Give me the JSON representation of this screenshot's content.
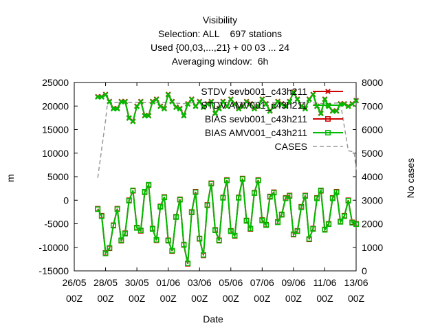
{
  "chart_data": {
    "type": "line",
    "title": "Visibility",
    "subtitle_lines": [
      "Selection: ALL    697 stations",
      "Used {00,03,...,21} + 00 03 ... 24",
      "Averaging window:  6h"
    ],
    "xlabel": "Date",
    "ylabel": "m",
    "y2label": "No cases",
    "ylim": [
      -15000,
      25000
    ],
    "y2lim": [
      0,
      8000
    ],
    "xlim": [
      "2023-05-26 00Z",
      "2023-06-13 00Z"
    ],
    "x_ticks": [
      {
        "line1": "26/05",
        "line2": "00Z"
      },
      {
        "line1": "28/05",
        "line2": "00Z"
      },
      {
        "line1": "30/05",
        "line2": "00Z"
      },
      {
        "line1": "01/06",
        "line2": "00Z"
      },
      {
        "line1": "03/06",
        "line2": "00Z"
      },
      {
        "line1": "05/06",
        "line2": "00Z"
      },
      {
        "line1": "07/06",
        "line2": "00Z"
      },
      {
        "line1": "09/06",
        "line2": "00Z"
      },
      {
        "line1": "11/06",
        "line2": "00Z"
      },
      {
        "line1": "13/06",
        "line2": "00Z"
      }
    ],
    "y_ticks": [
      "25000",
      "20000",
      "15000",
      "10000",
      "5000",
      "0",
      "-5000",
      "-10000",
      "-15000"
    ],
    "y2_ticks": [
      "8000",
      "7000",
      "6000",
      "5000",
      "4000",
      "3000",
      "2000",
      "1000",
      "0"
    ],
    "legend_position": "top-right",
    "x": [
      "2023-05-27 12Z",
      "2023-05-27 18Z",
      "2023-05-28 00Z",
      "2023-05-28 06Z",
      "2023-05-28 12Z",
      "2023-05-28 18Z",
      "2023-05-29 00Z",
      "2023-05-29 06Z",
      "2023-05-29 12Z",
      "2023-05-29 18Z",
      "2023-05-30 00Z",
      "2023-05-30 06Z",
      "2023-05-30 12Z",
      "2023-05-30 18Z",
      "2023-05-31 00Z",
      "2023-05-31 06Z",
      "2023-05-31 12Z",
      "2023-05-31 18Z",
      "2023-06-01 00Z",
      "2023-06-01 06Z",
      "2023-06-01 12Z",
      "2023-06-01 18Z",
      "2023-06-02 00Z",
      "2023-06-02 06Z",
      "2023-06-02 12Z",
      "2023-06-02 18Z",
      "2023-06-03 00Z",
      "2023-06-03 06Z",
      "2023-06-03 12Z",
      "2023-06-03 18Z",
      "2023-06-04 00Z",
      "2023-06-04 06Z",
      "2023-06-04 12Z",
      "2023-06-04 18Z",
      "2023-06-05 00Z",
      "2023-06-05 06Z",
      "2023-06-05 12Z",
      "2023-06-05 18Z",
      "2023-06-06 00Z",
      "2023-06-06 06Z",
      "2023-06-06 12Z",
      "2023-06-06 18Z",
      "2023-06-07 00Z",
      "2023-06-07 06Z",
      "2023-06-07 12Z",
      "2023-06-07 18Z",
      "2023-06-08 00Z",
      "2023-06-08 06Z",
      "2023-06-08 12Z",
      "2023-06-08 18Z",
      "2023-06-09 00Z",
      "2023-06-09 06Z",
      "2023-06-09 12Z",
      "2023-06-09 18Z",
      "2023-06-10 00Z",
      "2023-06-10 06Z",
      "2023-06-10 12Z",
      "2023-06-10 18Z",
      "2023-06-11 00Z",
      "2023-06-11 06Z",
      "2023-06-11 12Z",
      "2023-06-11 18Z",
      "2023-06-12 00Z",
      "2023-06-12 06Z",
      "2023-06-12 12Z",
      "2023-06-12 18Z",
      "2023-06-13 00Z"
    ],
    "series": [
      {
        "name": "STDV sevb001_c43h211",
        "color": "#cc0000",
        "marker": "x",
        "axis": "y",
        "values": [
          22000,
          22000,
          22500,
          21000,
          19500,
          19500,
          21000,
          21000,
          17500,
          16800,
          20000,
          21000,
          18000,
          18000,
          21000,
          21500,
          20000,
          19500,
          22500,
          21000,
          19800,
          19500,
          18000,
          20500,
          21500,
          20000,
          21000,
          19800,
          20500,
          21000,
          18500,
          19500,
          21000,
          20000,
          21500,
          20500,
          19500,
          20000,
          21000,
          20500,
          19500,
          20000,
          21500,
          20500,
          19000,
          20000,
          21000,
          20500,
          20000,
          21000,
          23000,
          21500,
          20000,
          19500,
          21500,
          22500,
          20000,
          18500,
          21500,
          20000,
          19000,
          19000,
          20500,
          20500,
          20000,
          20500,
          21200
        ]
      },
      {
        "name": "STDV AMV001_c43h211",
        "color": "#00bb00",
        "marker": "x",
        "axis": "y",
        "values": [
          21900,
          21900,
          22400,
          20900,
          19400,
          19400,
          20900,
          20900,
          17400,
          16700,
          19900,
          20900,
          17900,
          17900,
          20900,
          21400,
          19900,
          19400,
          22400,
          20900,
          19700,
          19400,
          17900,
          20400,
          21400,
          19900,
          20900,
          19700,
          20400,
          20900,
          18400,
          19400,
          20900,
          19900,
          21400,
          20400,
          19400,
          19900,
          20900,
          20400,
          19400,
          19900,
          21400,
          20400,
          18900,
          19900,
          20900,
          20400,
          19900,
          20900,
          22900,
          21400,
          19900,
          19400,
          21400,
          22400,
          19900,
          18400,
          21400,
          19900,
          18900,
          18900,
          20400,
          20400,
          19900,
          20400,
          21100
        ]
      },
      {
        "name": "BIAS sevb001_c43h211",
        "color": "#cc0000",
        "marker": "square",
        "axis": "y",
        "values": [
          -1800,
          -3300,
          -11200,
          -10200,
          -5300,
          -1800,
          -8600,
          -7000,
          0,
          2000,
          -5800,
          -6500,
          1700,
          3200,
          -6000,
          -8500,
          -1300,
          700,
          -8500,
          -10800,
          -3500,
          200,
          -9500,
          -13500,
          -2500,
          1800,
          -8200,
          -11700,
          -1000,
          3600,
          -6300,
          -8500,
          600,
          4300,
          -6500,
          -7600,
          600,
          4600,
          -4300,
          -6100,
          1600,
          4300,
          -4200,
          -5200,
          800,
          1700,
          -4600,
          -3000,
          500,
          1000,
          -7300,
          -6500,
          -1400,
          1000,
          -8300,
          -6000,
          500,
          2000,
          -6200,
          -5000,
          500,
          1800,
          -4500,
          -3300,
          0,
          -4700,
          -5000
        ]
      },
      {
        "name": "BIAS AMV001_c43h211",
        "color": "#00bb00",
        "marker": "square",
        "axis": "y",
        "values": [
          -1900,
          -3400,
          -11300,
          -10100,
          -5400,
          -1900,
          -8500,
          -7100,
          -100,
          2100,
          -5900,
          -6400,
          1800,
          3300,
          -6100,
          -8400,
          -1400,
          600,
          -8600,
          -10700,
          -3600,
          100,
          -9400,
          -13400,
          -2600,
          1700,
          -8100,
          -11600,
          -1100,
          3500,
          -6400,
          -8600,
          500,
          4200,
          -6600,
          -7500,
          500,
          4500,
          -4400,
          -6000,
          1500,
          4200,
          -4300,
          -5300,
          700,
          1600,
          -4700,
          -3100,
          400,
          900,
          -7200,
          -6600,
          -1500,
          900,
          -8200,
          -6100,
          400,
          2100,
          -6300,
          -5100,
          400,
          1700,
          -4600,
          -3400,
          -100,
          -4800,
          -5100
        ]
      },
      {
        "name": "CASES",
        "color": "#999999",
        "marker": "none",
        "axis": "y2",
        "dashed": true,
        "x": [
          "2023-05-27 12Z",
          "2023-05-28 00Z",
          "2023-05-28 03Z",
          "2023-05-29 00Z",
          "2023-05-30 00Z",
          "2023-05-31 00Z",
          "2023-06-01 00Z",
          "2023-06-02 00Z",
          "2023-06-03 00Z",
          "2023-06-04 00Z",
          "2023-06-05 00Z",
          "2023-06-06 00Z",
          "2023-06-07 00Z",
          "2023-06-08 00Z",
          "2023-06-09 00Z",
          "2023-06-10 00Z",
          "2023-06-11 00Z",
          "2023-06-12 00Z",
          "2023-06-12 12Z",
          "2023-06-12 21Z",
          "2023-06-13 00Z"
        ],
        "values": [
          3950,
          6400,
          7140,
          7150,
          7160,
          7140,
          7150,
          7100,
          7170,
          7150,
          7160,
          7140,
          7180,
          7140,
          7160,
          7150,
          7100,
          7140,
          5100,
          5050,
          4300
        ]
      }
    ]
  }
}
